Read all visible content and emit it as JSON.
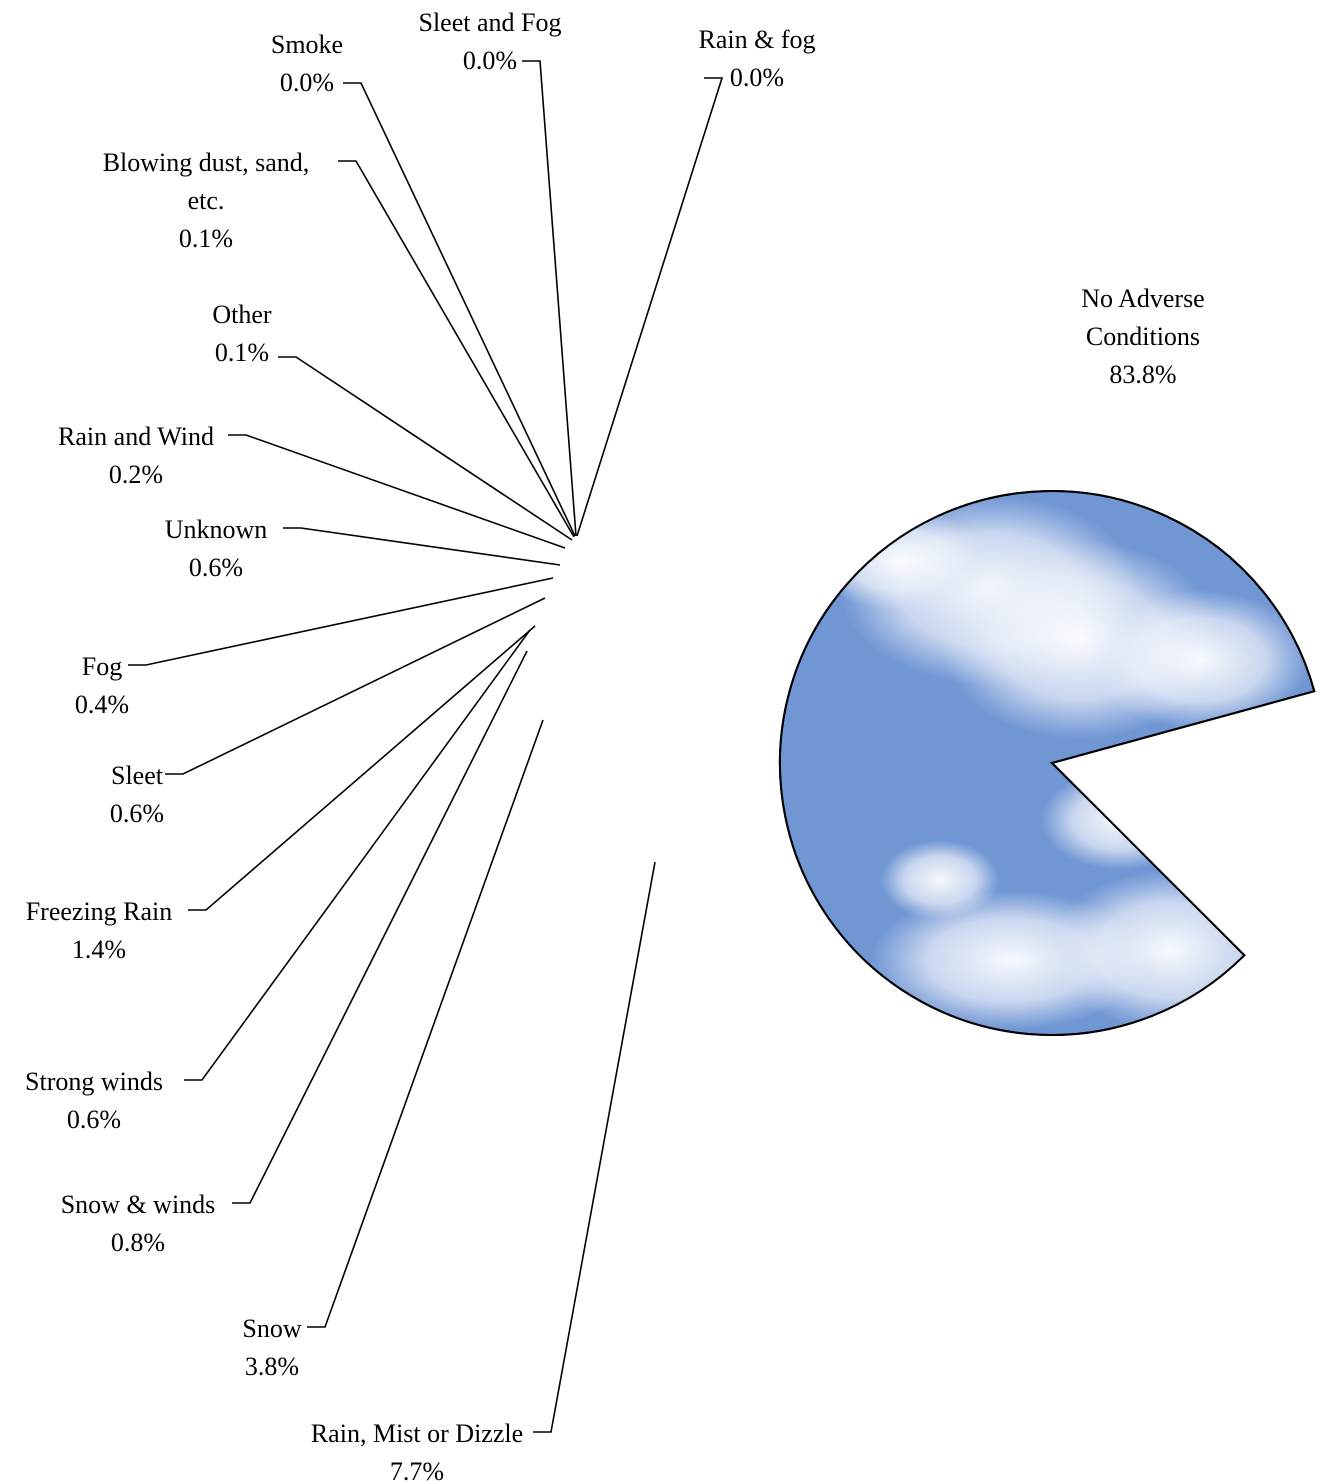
{
  "chart_data": {
    "type": "pie",
    "title": "",
    "categories": [
      "No Adverse Conditions",
      "Rain, Mist or Dizzle",
      "Snow",
      "Snow & winds",
      "Strong winds",
      "Freezing Rain",
      "Sleet",
      "Fog",
      "Unknown",
      "Rain and Wind",
      "Other",
      "Blowing dust, sand, etc.",
      "Smoke",
      "Sleet and Fog",
      "Rain & fog"
    ],
    "values": [
      83.8,
      7.7,
      3.8,
      0.8,
      0.6,
      1.4,
      0.6,
      0.4,
      0.6,
      0.2,
      0.1,
      0.1,
      0.0,
      0.0,
      0.0
    ],
    "legend": "none",
    "labels": [
      {
        "name": [
          "No Adverse",
          "Conditions"
        ],
        "value": "83.8%"
      },
      {
        "name": [
          "Rain, Mist or Dizzle"
        ],
        "value": "7.7%"
      },
      {
        "name": [
          "Snow"
        ],
        "value": "3.8%"
      },
      {
        "name": [
          "Snow & winds"
        ],
        "value": "0.8%"
      },
      {
        "name": [
          "Strong winds"
        ],
        "value": "0.6%"
      },
      {
        "name": [
          "Freezing Rain"
        ],
        "value": "1.4%"
      },
      {
        "name": [
          "Sleet"
        ],
        "value": "0.6%"
      },
      {
        "name": [
          "Fog"
        ],
        "value": "0.4%"
      },
      {
        "name": [
          "Unknown"
        ],
        "value": "0.6%"
      },
      {
        "name": [
          "Rain and Wind"
        ],
        "value": "0.2%"
      },
      {
        "name": [
          "Other"
        ],
        "value": "0.1%"
      },
      {
        "name": [
          "Blowing dust, sand,",
          "etc."
        ],
        "value": "0.1%"
      },
      {
        "name": [
          "Smoke"
        ],
        "value": "0.0%"
      },
      {
        "name": [
          "Sleet and Fog"
        ],
        "value": "0.0%"
      },
      {
        "name": [
          "Rain & fog"
        ],
        "value": "0.0%"
      }
    ],
    "colors": [
      "#7096d4",
      "#ffffff",
      "#ffffff",
      "#c8f4f6",
      "#ffffff",
      "#800080",
      "#ffffff",
      "#ff8080",
      "#0066cc",
      "#ccccff",
      "#000080",
      "#000000",
      "#000000",
      "#000000",
      "#000000"
    ],
    "fills": [
      "sky-with-clouds",
      "thunderstorm-picture",
      "snowflake-picture",
      "solid",
      "solid",
      "solid",
      "solid",
      "solid",
      "solid",
      "solid",
      "solid",
      "solid",
      "solid",
      "solid",
      "solid"
    ]
  }
}
